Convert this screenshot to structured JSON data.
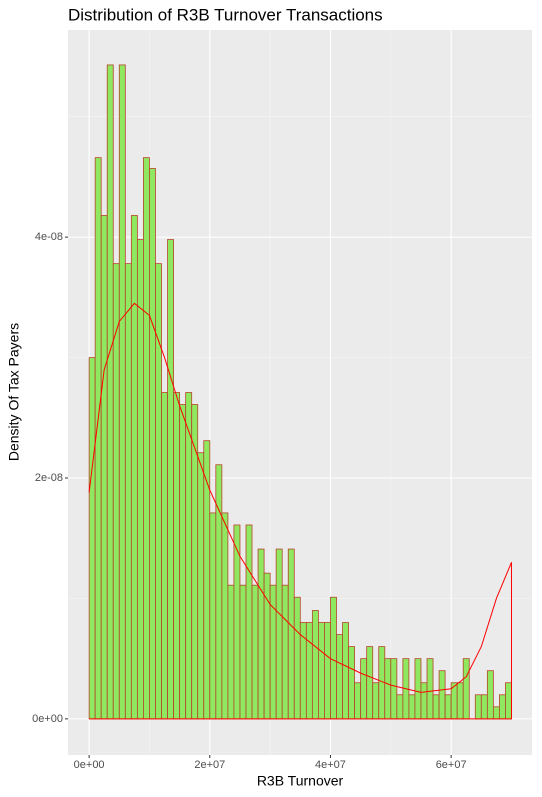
{
  "chart_data": {
    "type": "histogram",
    "title": "Distribution of R3B Turnover Transactions",
    "x_label": "R3B Turnover",
    "y_label": "Density Of Tax Payers",
    "bins": [
      0,
      1000000,
      2000000,
      3000000,
      4000000,
      5000000,
      6000000,
      7000000,
      8000000,
      9000000,
      10000000,
      11000000,
      12000000,
      13000000,
      14000000,
      15000000,
      16000000,
      17000000,
      18000000,
      19000000,
      20000000,
      21000000,
      22000000,
      23000000,
      24000000,
      25000000,
      26000000,
      27000000,
      28000000,
      29000000,
      30000000,
      31000000,
      32000000,
      33000000,
      34000000,
      35000000,
      36000000,
      37000000,
      38000000,
      39000000,
      40000000,
      41000000,
      42000000,
      43000000,
      44000000,
      45000000,
      46000000,
      47000000,
      48000000,
      49000000,
      50000000,
      51000000,
      52000000,
      53000000,
      54000000,
      55000000,
      56000000,
      57000000,
      58000000,
      59000000,
      60000000,
      61000000,
      62000000,
      63000000,
      64000000,
      65000000,
      66000000,
      67000000,
      68000000,
      69000000,
      70000000
    ],
    "values": [
      3e-08,
      4.66e-08,
      4.18e-08,
      5.43e-08,
      3.78e-08,
      5.43e-08,
      3.78e-08,
      4.18e-08,
      3.98e-08,
      4.66e-08,
      4.57e-08,
      3.78e-08,
      2.71e-08,
      3.98e-08,
      2.71e-08,
      2.61e-08,
      2.71e-08,
      2.61e-08,
      2.21e-08,
      2.31e-08,
      1.71e-08,
      2.11e-08,
      1.71e-08,
      1.11e-08,
      1.61e-08,
      1.11e-08,
      1.61e-08,
      1.11e-08,
      1.41e-08,
      1.21e-08,
      1.11e-08,
      1.41e-08,
      1.11e-08,
      1.41e-08,
      1.01e-08,
      8e-09,
      8e-09,
      9e-09,
      8e-09,
      8e-09,
      1.01e-08,
      7e-09,
      8e-09,
      6e-09,
      3e-09,
      5e-09,
      6e-09,
      3e-09,
      6e-09,
      5e-09,
      5e-09,
      2e-09,
      5e-09,
      2e-09,
      5e-09,
      3e-09,
      5e-09,
      2e-09,
      4e-09,
      2e-09,
      3e-09,
      3e-09,
      5e-09,
      0,
      2e-09,
      2e-09,
      4e-09,
      1e-09,
      2e-09,
      3e-09
    ],
    "color": "#8fe85f",
    "edge_color": "#b5452a",
    "density": {
      "x": [
        0,
        2500000,
        5000000,
        7500000,
        10000000,
        12500000,
        15000000,
        20000000,
        25000000,
        30000000,
        35000000,
        40000000,
        45000000,
        50000000,
        55000000,
        60000000,
        62500000,
        65000000,
        67500000,
        70000000
      ],
      "y": [
        1.88e-08,
        2.9e-08,
        3.3e-08,
        3.45e-08,
        3.35e-08,
        3e-08,
        2.6e-08,
        1.9e-08,
        1.35e-08,
        9.5e-09,
        7e-09,
        5e-09,
        3.8e-09,
        2.8e-09,
        2.2e-09,
        2.5e-09,
        3.5e-09,
        6e-09,
        1e-08,
        1.3e-08
      ],
      "color": "#ff0000"
    },
    "xlim": [
      -3500000,
      73400000
    ],
    "ylim": [
      -3e-09,
      5.72e-08
    ],
    "xticks": [
      {
        "value": 0,
        "label": "0e+00"
      },
      {
        "value": 20000000,
        "label": "2e+07"
      },
      {
        "value": 40000000,
        "label": "4e+07"
      },
      {
        "value": 60000000,
        "label": "6e+07"
      }
    ],
    "yticks": [
      {
        "value": 0,
        "label": "0e+00"
      },
      {
        "value": 2e-08,
        "label": "2e-08"
      },
      {
        "value": 4e-08,
        "label": "4e-08"
      }
    ],
    "grid": true
  }
}
